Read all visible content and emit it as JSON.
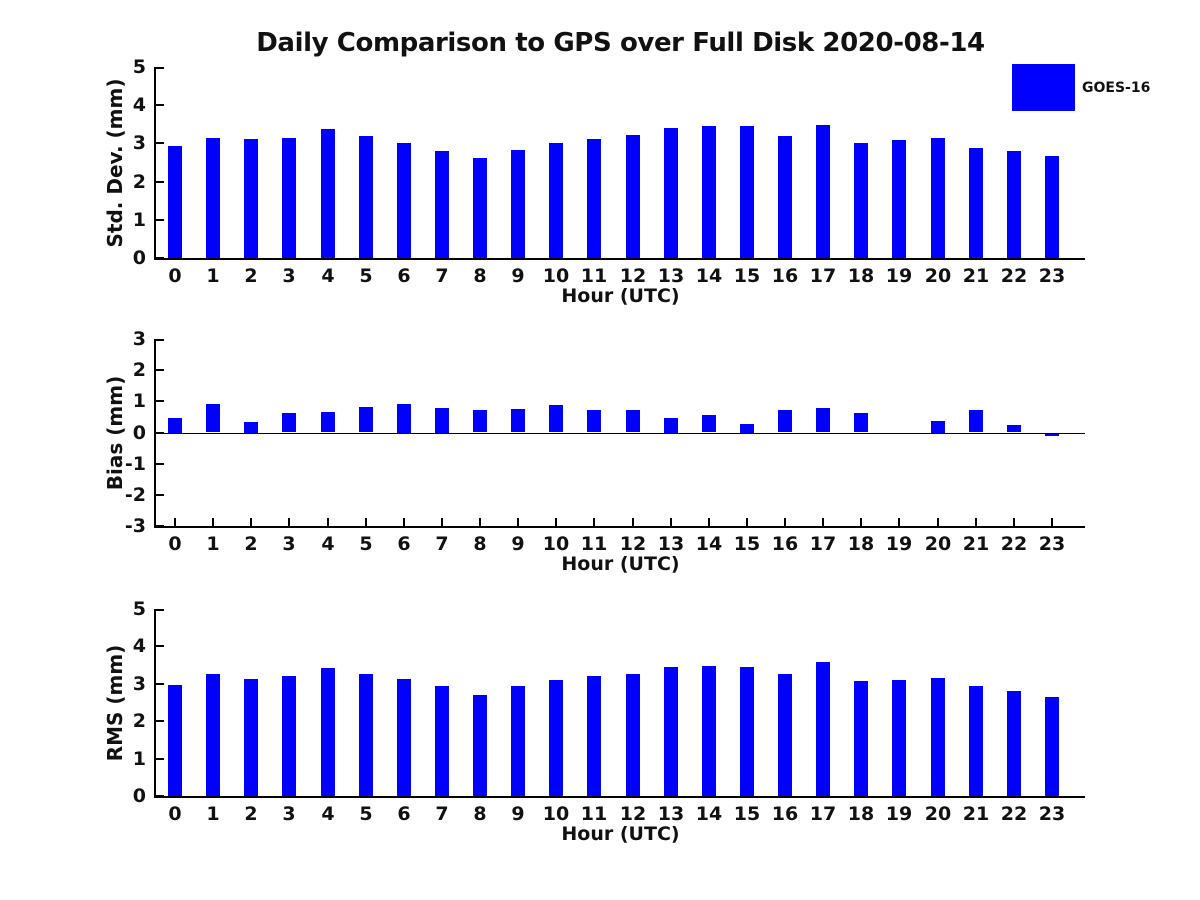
{
  "figure": {
    "title": "Daily Comparison to GPS over Full Disk 2020-08-14",
    "legend": {
      "label": "GOES-16",
      "color": "#0000ff"
    },
    "background": "#ffffff",
    "text_color": "#111111"
  },
  "chart_data": [
    {
      "type": "bar",
      "name": "std-dev",
      "title": "",
      "ylabel": "Std. Dev. (mm)",
      "xlabel": "Hour (UTC)",
      "series_name": "GOES-16",
      "bar_color": "#0000ff",
      "grid": false,
      "ylim": [
        0,
        5
      ],
      "yticks": [
        0,
        1,
        2,
        3,
        4,
        5
      ],
      "categories": [
        "0",
        "1",
        "2",
        "3",
        "4",
        "5",
        "6",
        "7",
        "8",
        "9",
        "10",
        "11",
        "12",
        "13",
        "14",
        "15",
        "16",
        "17",
        "18",
        "19",
        "20",
        "21",
        "22",
        "23"
      ],
      "values": [
        2.93,
        3.15,
        3.11,
        3.15,
        3.38,
        3.19,
        3.01,
        2.81,
        2.61,
        2.84,
        3.01,
        3.12,
        3.22,
        3.4,
        3.45,
        3.45,
        3.2,
        3.48,
        3.01,
        3.08,
        3.14,
        2.89,
        2.79,
        2.66
      ]
    },
    {
      "type": "bar",
      "name": "bias",
      "title": "",
      "ylabel": "Bias (mm)",
      "xlabel": "Hour (UTC)",
      "series_name": "GOES-16",
      "bar_color": "#0000ff",
      "grid": false,
      "ylim": [
        -3,
        3
      ],
      "yticks": [
        -3,
        -2,
        -1,
        0,
        1,
        2,
        3
      ],
      "categories": [
        "0",
        "1",
        "2",
        "3",
        "4",
        "5",
        "6",
        "7",
        "8",
        "9",
        "10",
        "11",
        "12",
        "13",
        "14",
        "15",
        "16",
        "17",
        "18",
        "19",
        "20",
        "21",
        "22",
        "23"
      ],
      "values": [
        0.48,
        0.91,
        0.34,
        0.62,
        0.65,
        0.81,
        0.92,
        0.8,
        0.71,
        0.75,
        0.88,
        0.71,
        0.72,
        0.48,
        0.56,
        0.28,
        0.71,
        0.78,
        0.62,
        0.0,
        0.38,
        0.72,
        0.23,
        -0.08
      ]
    },
    {
      "type": "bar",
      "name": "rms",
      "title": "",
      "ylabel": "RMS (mm)",
      "xlabel": "Hour (UTC)",
      "series_name": "GOES-16",
      "bar_color": "#0000ff",
      "grid": false,
      "ylim": [
        0,
        5
      ],
      "yticks": [
        0,
        1,
        2,
        3,
        4,
        5
      ],
      "categories": [
        "0",
        "1",
        "2",
        "3",
        "4",
        "5",
        "6",
        "7",
        "8",
        "9",
        "10",
        "11",
        "12",
        "13",
        "14",
        "15",
        "16",
        "17",
        "18",
        "19",
        "20",
        "21",
        "22",
        "23"
      ],
      "values": [
        2.97,
        3.26,
        3.13,
        3.21,
        3.43,
        3.27,
        3.12,
        2.93,
        2.7,
        2.93,
        3.11,
        3.22,
        3.27,
        3.44,
        3.48,
        3.46,
        3.26,
        3.57,
        3.07,
        3.1,
        3.15,
        2.95,
        2.81,
        2.64
      ]
    }
  ]
}
